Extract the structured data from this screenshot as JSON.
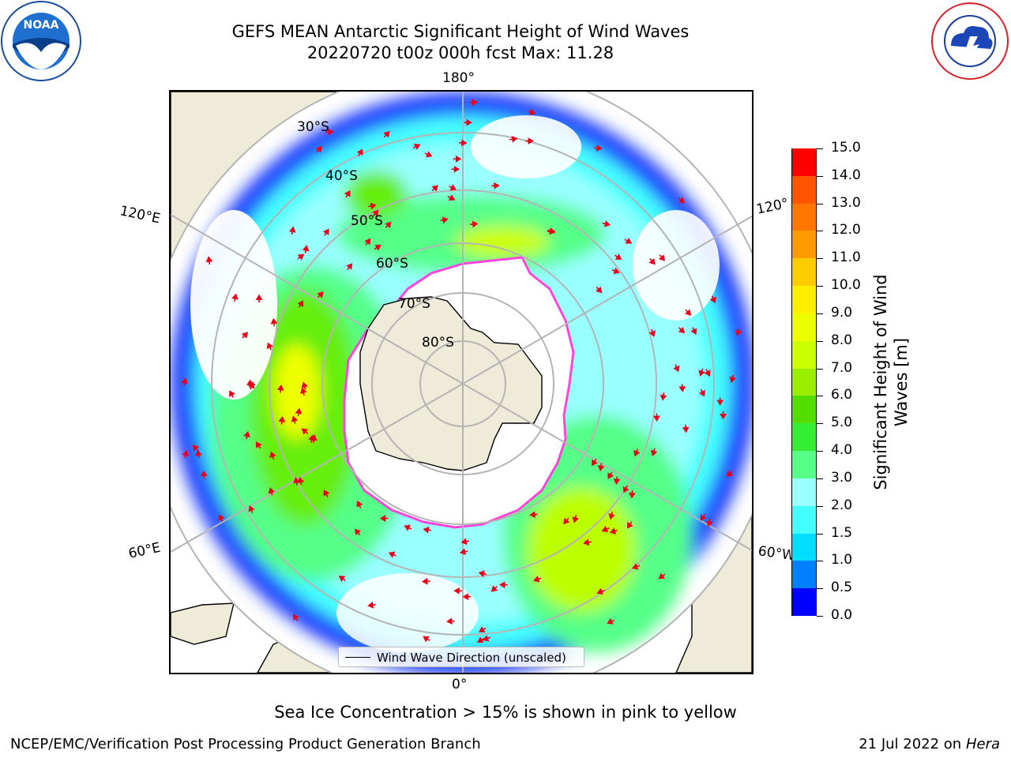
{
  "title": {
    "line1": "GEFS MEAN Antarctic Significant Height of Wind Waves",
    "line2": "20220720 t00z 000h fcst   Max: 11.28"
  },
  "map": {
    "longitude_labels": {
      "top": "180°",
      "bottom": "0°",
      "upper_left": "120°E",
      "upper_right": "120°",
      "lower_left": "60°E",
      "lower_right": "60°W"
    },
    "latitude_labels": [
      "30°S",
      "40°S",
      "50°S",
      "60°S",
      "70°S",
      "80°S"
    ],
    "legend_label": "Wind Wave Direction (unscaled)",
    "colors": {
      "land": "#efebd9",
      "coast": "#000000",
      "grid": "#b4b4b4",
      "ice_edge": "#ff44dd",
      "arrow": "#e8001a"
    }
  },
  "colorbar": {
    "label": "Significant Height of Wind Waves [m]",
    "ticks": [
      "0.0",
      "0.5",
      "1.0",
      "1.5",
      "2.0",
      "3.0",
      "4.0",
      "5.0",
      "6.0",
      "7.0",
      "8.0",
      "9.0",
      "10.0",
      "11.0",
      "12.0",
      "13.0",
      "14.0",
      "15.0"
    ],
    "colors": [
      "#0000ff",
      "#0080ff",
      "#00ddff",
      "#44ffff",
      "#99ffff",
      "#55ff88",
      "#33ee33",
      "#55dd00",
      "#99ee00",
      "#ccff00",
      "#eeff00",
      "#ffee00",
      "#ffcc00",
      "#ff9900",
      "#ff7700",
      "#ff5500",
      "#ff0000"
    ]
  },
  "caption": "Sea Ice Concentration > 15% is shown in pink to yellow",
  "footer": {
    "left": "NCEP/EMC/Verification Post Processing Product Generation Branch",
    "right_date": "21 Jul 2022 on",
    "right_machine": "Hera"
  },
  "logos": {
    "left": "NOAA",
    "right": "NATIONAL WEATHER SERVICE"
  }
}
